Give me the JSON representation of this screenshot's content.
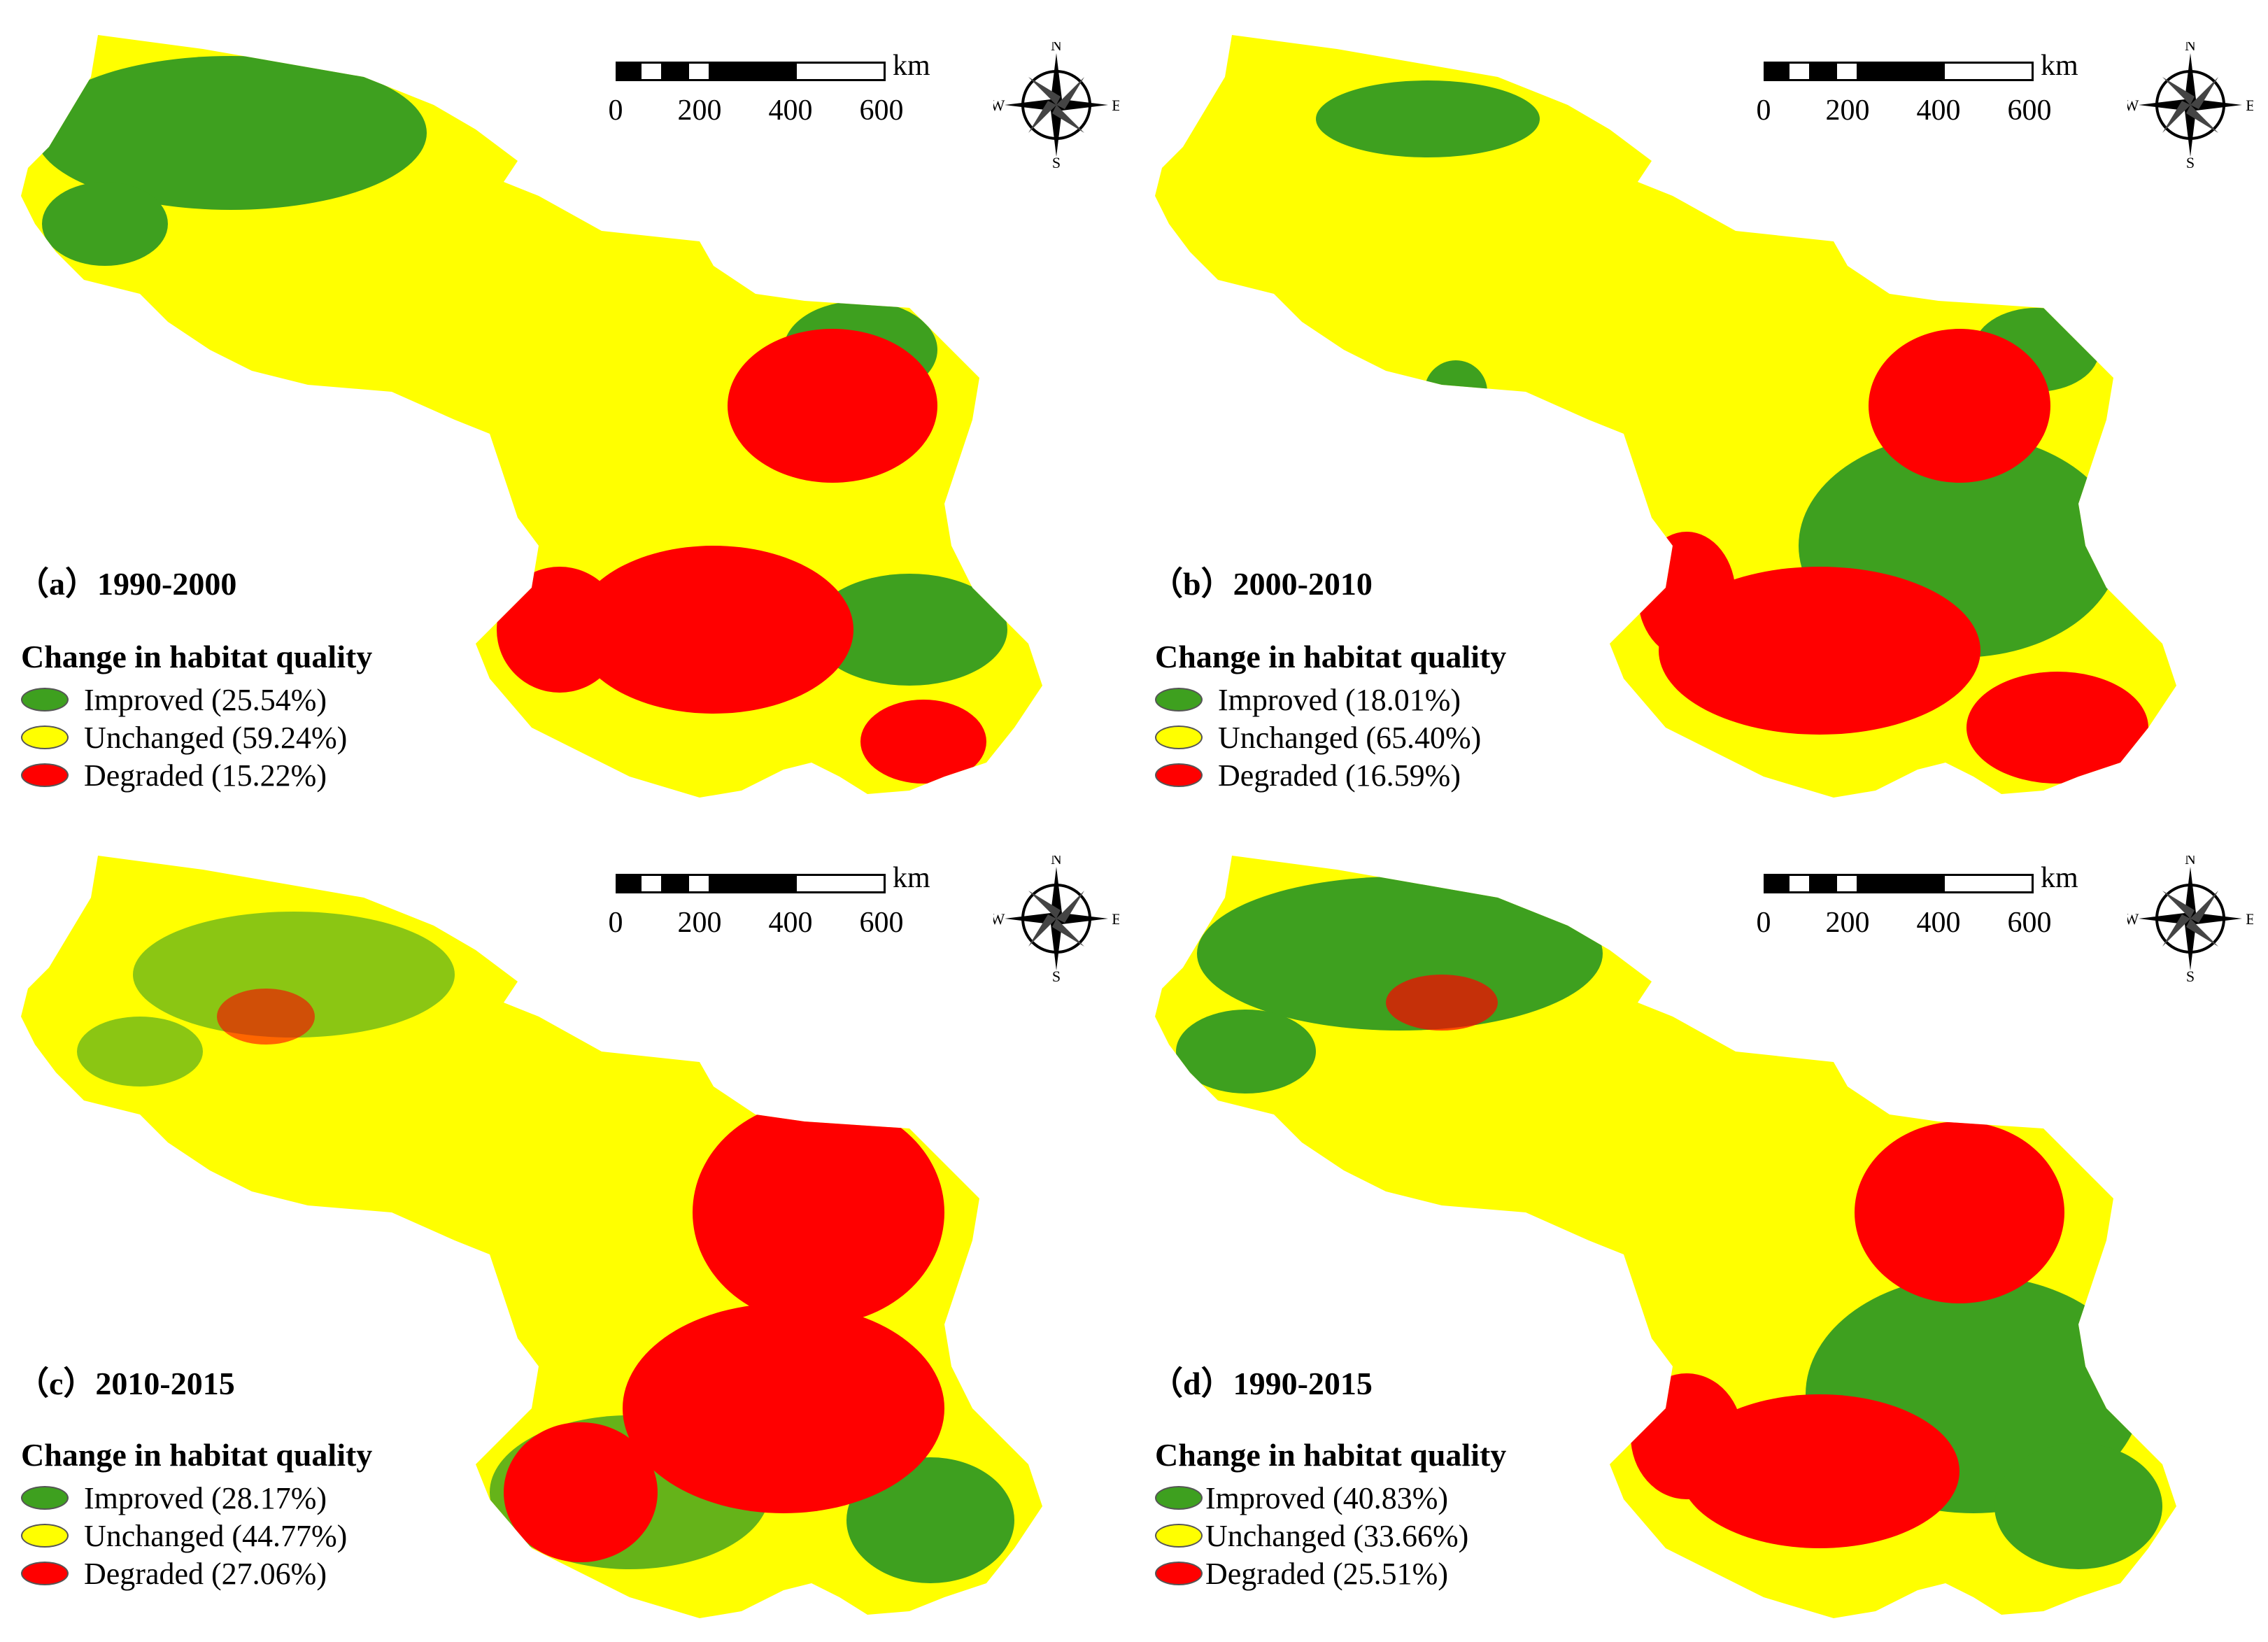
{
  "colors": {
    "improved": "#3ea01f",
    "unchanged": "#ffff00",
    "degraded": "#ff0000"
  },
  "scalebar": {
    "unit": "km",
    "ticks": [
      "0",
      "200",
      "400",
      "600"
    ]
  },
  "compass": {
    "n": "N",
    "s": "S",
    "e": "E",
    "w": "W"
  },
  "legend_title": "Change in habitat quality",
  "panels": [
    {
      "label": "（a）1990-2000",
      "improved": "Improved (25.54%)",
      "unchanged": "Unchanged (59.24%)",
      "degraded": "Degraded (15.22%)"
    },
    {
      "label": "（b）2000-2010",
      "improved": "Improved (18.01%)",
      "unchanged": "Unchanged (65.40%)",
      "degraded": "Degraded (16.59%)"
    },
    {
      "label": "（c）2010-2015",
      "improved": "Improved (28.17%)",
      "unchanged": "Unchanged (44.77%)",
      "degraded": "Degraded (27.06%)"
    },
    {
      "label": "（d）1990-2015",
      "improved": "Improved (40.83%)",
      "unchanged": "Unchanged (33.66%)",
      "degraded": "Degraded (25.51%)"
    }
  ]
}
